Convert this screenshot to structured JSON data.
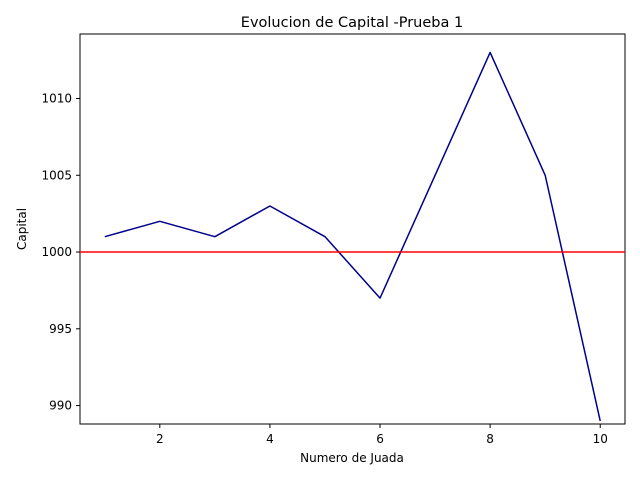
{
  "chart_data": {
    "type": "line",
    "title": "Evolucion de Capital -Prueba 1",
    "xlabel": "Numero de Juada",
    "ylabel": "Capital",
    "xlim": [
      0.55,
      10.45
    ],
    "ylim": [
      988.8,
      1014.2
    ],
    "xticks": [
      2,
      4,
      6,
      8,
      10
    ],
    "yticks": [
      990,
      995,
      1000,
      1005,
      1010
    ],
    "grid": false,
    "series": [
      {
        "x": [
          1,
          2,
          3,
          4,
          5,
          6,
          7,
          8,
          9,
          10
        ],
        "values": [
          1001,
          1002,
          1001,
          1003,
          1001,
          997,
          1005,
          1013,
          1005,
          989
        ],
        "color": "#00008b"
      }
    ],
    "reference_line": {
      "y": 1000,
      "color": "#ff0000"
    }
  }
}
